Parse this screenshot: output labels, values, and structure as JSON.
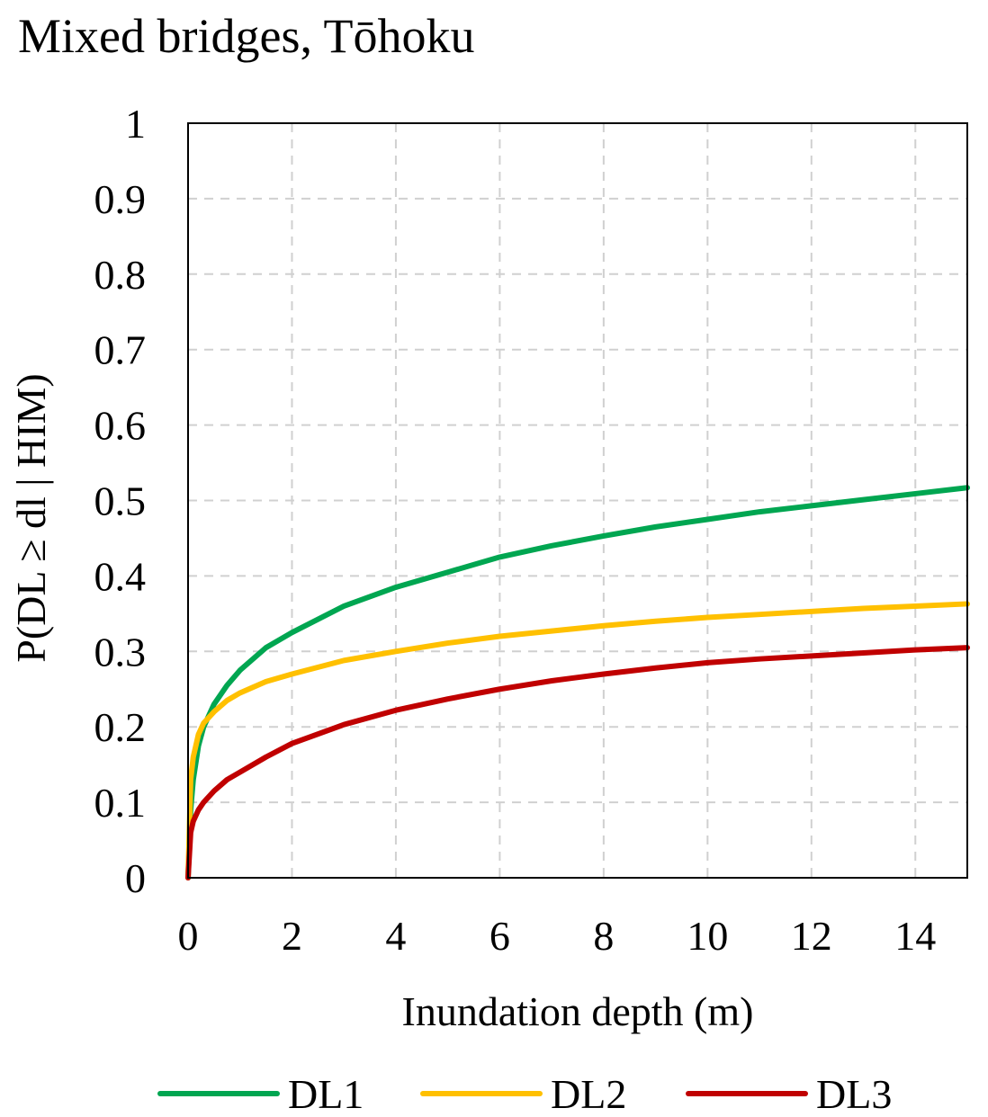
{
  "chart_data": {
    "type": "line",
    "title": "Mixed bridges, Tōhoku",
    "xlabel": "Inundation depth (m)",
    "ylabel": "P(DL ≥ dl | HIM)",
    "xlim": [
      0,
      15
    ],
    "ylim": [
      0,
      1
    ],
    "x_ticks": [
      0,
      2,
      4,
      6,
      8,
      10,
      12,
      14
    ],
    "x_tick_labels": [
      "0",
      "2",
      "4",
      "6",
      "8",
      "10",
      "12",
      "14"
    ],
    "y_ticks": [
      0,
      0.1,
      0.2,
      0.3,
      0.4,
      0.5,
      0.6,
      0.7,
      0.8,
      0.9,
      1
    ],
    "y_tick_labels": [
      "0",
      "0.1",
      "0.2",
      "0.3",
      "0.4",
      "0.5",
      "0.6",
      "0.7",
      "0.8",
      "0.9",
      "1"
    ],
    "grid": true,
    "legend_position": "bottom",
    "x": [
      0,
      0.05,
      0.1,
      0.2,
      0.3,
      0.5,
      0.75,
      1,
      1.5,
      2,
      3,
      4,
      5,
      6,
      7,
      8,
      9,
      10,
      11,
      12,
      13,
      14,
      15
    ],
    "series": [
      {
        "name": "DL1",
        "color": "#00a651",
        "values": [
          0,
          0.09,
          0.13,
          0.175,
          0.2,
          0.23,
          0.255,
          0.275,
          0.305,
          0.325,
          0.36,
          0.385,
          0.405,
          0.425,
          0.44,
          0.453,
          0.465,
          0.475,
          0.485,
          0.493,
          0.501,
          0.509,
          0.517
        ]
      },
      {
        "name": "DL2",
        "color": "#ffc000",
        "values": [
          0,
          0.13,
          0.16,
          0.19,
          0.205,
          0.22,
          0.235,
          0.245,
          0.26,
          0.27,
          0.288,
          0.3,
          0.311,
          0.32,
          0.327,
          0.334,
          0.34,
          0.345,
          0.349,
          0.353,
          0.357,
          0.36,
          0.363
        ]
      },
      {
        "name": "DL3",
        "color": "#c00000",
        "values": [
          0,
          0.06,
          0.075,
          0.09,
          0.1,
          0.115,
          0.13,
          0.14,
          0.16,
          0.178,
          0.203,
          0.222,
          0.237,
          0.25,
          0.261,
          0.27,
          0.278,
          0.285,
          0.29,
          0.294,
          0.298,
          0.302,
          0.305
        ]
      }
    ]
  }
}
